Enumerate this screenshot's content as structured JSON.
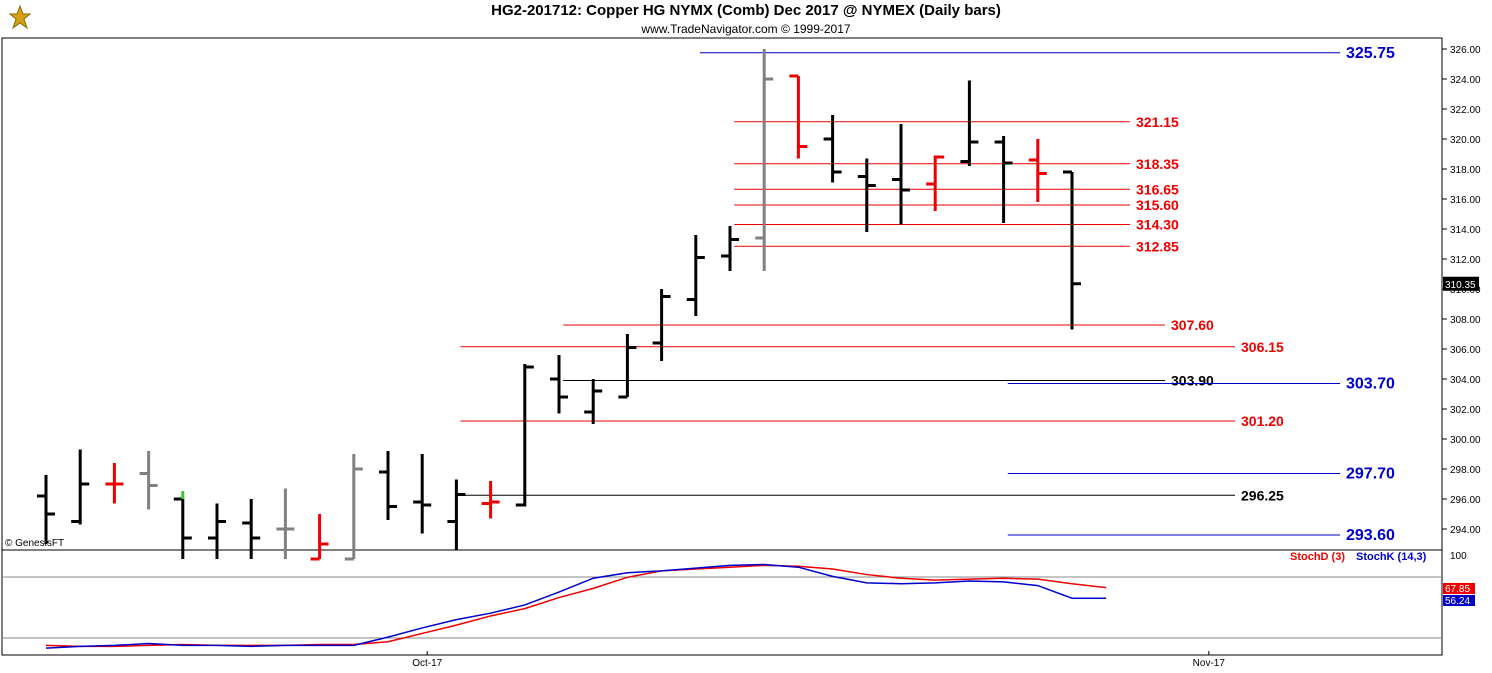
{
  "title": "HG2-201712:  Copper HG NYMX (Comb) Dec 2017 @ NYMEX  (Daily bars)",
  "subtitle": "www.TradeNavigator.com © 1999-2017",
  "watermark": "© GenesisFT",
  "chart_data": {
    "type": "ohlc",
    "price_axis": {
      "min": 292,
      "max": 327,
      "ticks": [
        "326.00",
        "324.00",
        "322.00",
        "320.00",
        "318.00",
        "316.00",
        "314.00",
        "312.00",
        "310.00",
        "308.00",
        "306.00",
        "304.00",
        "302.00",
        "300.00",
        "298.00",
        "296.00",
        "294.00"
      ]
    },
    "last_price_label": "310.35",
    "x_labels": [
      {
        "text": "Oct-17",
        "bar": 11
      },
      {
        "text": "Nov-17",
        "bar": 34
      }
    ],
    "bars": [
      {
        "o": 296.2,
        "h": 297.6,
        "l": 293.0,
        "c": 295.0,
        "color": "#000000"
      },
      {
        "o": 294.5,
        "h": 299.3,
        "l": 294.3,
        "c": 297.0,
        "color": "#000000"
      },
      {
        "o": 297.0,
        "h": 298.4,
        "l": 295.7,
        "c": 297.0,
        "color": "#ee0000"
      },
      {
        "o": 297.7,
        "h": 299.2,
        "l": 295.3,
        "c": 296.9,
        "color": "#808080"
      },
      {
        "o": 296.0,
        "h": 296.0,
        "l": 292.0,
        "c": 293.4,
        "color": "#000000",
        "high_tick": "#33cc33"
      },
      {
        "o": 293.4,
        "h": 295.7,
        "l": 292.0,
        "c": 294.5,
        "color": "#000000"
      },
      {
        "o": 294.4,
        "h": 296.0,
        "l": 292.0,
        "c": 293.4,
        "color": "#000000"
      },
      {
        "o": 294.0,
        "h": 296.7,
        "l": 292.0,
        "c": 294.0,
        "color": "#808080"
      },
      {
        "o": 292.0,
        "h": 295.0,
        "l": 292.0,
        "c": 293.0,
        "color": "#ee0000"
      },
      {
        "o": 292.0,
        "h": 299.0,
        "l": 292.0,
        "c": 298.0,
        "color": "#808080"
      },
      {
        "o": 297.8,
        "h": 299.2,
        "l": 294.6,
        "c": 295.5,
        "color": "#000000"
      },
      {
        "o": 295.8,
        "h": 299.0,
        "l": 293.7,
        "c": 295.6,
        "color": "#000000"
      },
      {
        "o": 294.5,
        "h": 297.3,
        "l": 292.6,
        "c": 296.3,
        "color": "#000000"
      },
      {
        "o": 295.7,
        "h": 297.2,
        "l": 294.7,
        "c": 295.8,
        "color": "#ee0000"
      },
      {
        "o": 295.6,
        "h": 305.0,
        "l": 295.5,
        "c": 304.8,
        "color": "#000000"
      },
      {
        "o": 304.0,
        "h": 305.6,
        "l": 301.7,
        "c": 302.8,
        "color": "#000000"
      },
      {
        "o": 301.8,
        "h": 304.0,
        "l": 301.0,
        "c": 303.2,
        "color": "#000000"
      },
      {
        "o": 302.8,
        "h": 307.0,
        "l": 302.8,
        "c": 306.1,
        "color": "#000000"
      },
      {
        "o": 306.4,
        "h": 310.0,
        "l": 305.2,
        "c": 309.5,
        "color": "#000000"
      },
      {
        "o": 309.3,
        "h": 313.6,
        "l": 308.2,
        "c": 312.1,
        "color": "#000000"
      },
      {
        "o": 312.2,
        "h": 314.2,
        "l": 311.2,
        "c": 313.3,
        "color": "#000000"
      },
      {
        "o": 313.4,
        "h": 326.0,
        "l": 311.2,
        "c": 324.0,
        "color": "#808080"
      },
      {
        "o": 324.2,
        "h": 324.2,
        "l": 318.7,
        "c": 319.5,
        "color": "#ee0000"
      },
      {
        "o": 320.0,
        "h": 321.6,
        "l": 317.1,
        "c": 317.8,
        "color": "#000000"
      },
      {
        "o": 317.5,
        "h": 318.7,
        "l": 313.8,
        "c": 316.9,
        "color": "#000000"
      },
      {
        "o": 317.3,
        "h": 321.0,
        "l": 314.3,
        "c": 316.6,
        "color": "#000000"
      },
      {
        "o": 317.0,
        "h": 318.9,
        "l": 315.2,
        "c": 318.8,
        "color": "#ee0000"
      },
      {
        "o": 318.5,
        "h": 323.9,
        "l": 318.2,
        "c": 319.8,
        "color": "#000000"
      },
      {
        "o": 319.8,
        "h": 320.2,
        "l": 314.4,
        "c": 318.4,
        "color": "#000000"
      },
      {
        "o": 318.6,
        "h": 320.0,
        "l": 315.8,
        "c": 317.7,
        "color": "#ee0000"
      },
      {
        "o": 317.8,
        "h": 317.8,
        "l": 307.3,
        "c": 310.35,
        "color": "#000000"
      }
    ],
    "levels": [
      {
        "price": 325.75,
        "label": "325.75",
        "color": "#0000cc",
        "from_bar": 20,
        "label_pos": "far"
      },
      {
        "price": 321.15,
        "label": "321.15",
        "color": "#ee0000",
        "from_bar": 21,
        "label_pos": "near"
      },
      {
        "price": 318.35,
        "label": "318.35",
        "color": "#ee0000",
        "from_bar": 21,
        "label_pos": "near"
      },
      {
        "price": 316.65,
        "label": "316.65",
        "color": "#ee0000",
        "from_bar": 21,
        "label_pos": "near"
      },
      {
        "price": 315.6,
        "label": "315.60",
        "color": "#ee0000",
        "from_bar": 21,
        "label_pos": "near"
      },
      {
        "price": 314.3,
        "label": "314.30",
        "color": "#ee0000",
        "from_bar": 21,
        "label_pos": "near"
      },
      {
        "price": 312.85,
        "label": "312.85",
        "color": "#ee0000",
        "from_bar": 21,
        "label_pos": "near"
      },
      {
        "price": 307.6,
        "label": "307.60",
        "color": "#ee0000",
        "from_bar": 16,
        "label_pos": "mid"
      },
      {
        "price": 306.15,
        "label": "306.15",
        "color": "#ee0000",
        "from_bar": 13,
        "label_pos": "mid2"
      },
      {
        "price": 303.9,
        "label": "303.90",
        "color": "#000000",
        "from_bar": 16,
        "label_pos": "mid"
      },
      {
        "price": 303.7,
        "label": "303.70",
        "color": "#0000cc",
        "from_bar": 29,
        "label_pos": "far"
      },
      {
        "price": 301.2,
        "label": "301.20",
        "color": "#ee0000",
        "from_bar": 13,
        "label_pos": "mid2"
      },
      {
        "price": 297.7,
        "label": "297.70",
        "color": "#0000cc",
        "from_bar": 29,
        "label_pos": "far"
      },
      {
        "price": 296.25,
        "label": "296.25",
        "color": "#000000",
        "from_bar": 13,
        "label_pos": "mid2"
      },
      {
        "price": 293.6,
        "label": "293.60",
        "color": "#0000cc",
        "from_bar": 29,
        "label_pos": "far"
      }
    ],
    "oscillator": {
      "axis_label": "100",
      "legend": [
        {
          "text": "StochD (3)",
          "color": "#ee0000"
        },
        {
          "text": "StochK (14,3)",
          "color": "#0000cc"
        }
      ],
      "stoch_d_label": "67.85",
      "stoch_k_label": "56.24",
      "stoch_d": [
        5,
        4,
        4,
        5,
        6,
        5,
        5,
        5,
        6,
        6,
        9,
        18,
        27,
        37,
        45,
        57,
        67,
        79,
        86,
        88,
        90,
        92,
        91,
        88,
        82,
        78,
        76,
        77,
        78,
        77,
        72,
        67.85
      ],
      "stoch_k": [
        2,
        4,
        5,
        7,
        5,
        5,
        4,
        5,
        5,
        5,
        14,
        24,
        33,
        40,
        49,
        63,
        78,
        84,
        86,
        89,
        92,
        93,
        90,
        80,
        73,
        72,
        73,
        75,
        74,
        70,
        56.24,
        56.24
      ]
    }
  }
}
